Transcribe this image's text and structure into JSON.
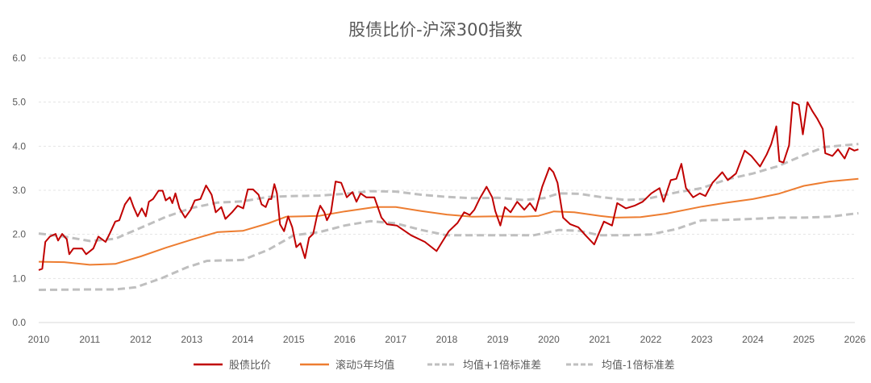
{
  "chart_data": {
    "type": "line",
    "title": "股债比价-沪深300指数",
    "xlabel": "",
    "ylabel": "",
    "xlim": [
      2010,
      2026
    ],
    "ylim": [
      0,
      6
    ],
    "x_ticks": [
      "2010",
      "2011",
      "2012",
      "2013",
      "2014",
      "2015",
      "2016",
      "2017",
      "2018",
      "2019",
      "2020",
      "2021",
      "2022",
      "2023",
      "2024",
      "2025",
      "2026"
    ],
    "y_ticks": [
      "0.0",
      "1.0",
      "2.0",
      "3.0",
      "4.0",
      "5.0",
      "6.0"
    ],
    "grid": "horizontal dashed",
    "legend_position": "bottom",
    "series": [
      {
        "name": "股债比价",
        "color": "#C00000",
        "style": "solid",
        "x": [
          2010.0,
          2010.07,
          2010.13,
          2010.22,
          2010.33,
          2010.38,
          2010.46,
          2010.55,
          2010.6,
          2010.68,
          2010.85,
          2010.93,
          2011.07,
          2011.17,
          2011.31,
          2011.39,
          2011.5,
          2011.58,
          2011.69,
          2011.79,
          2011.86,
          2011.94,
          2012.02,
          2012.1,
          2012.16,
          2012.24,
          2012.35,
          2012.43,
          2012.49,
          2012.57,
          2012.62,
          2012.68,
          2012.76,
          2012.87,
          2012.98,
          2013.06,
          2013.17,
          2013.28,
          2013.39,
          2013.47,
          2013.58,
          2013.66,
          2013.79,
          2013.9,
          2014.01,
          2014.1,
          2014.2,
          2014.31,
          2014.37,
          2014.45,
          2014.51,
          2014.56,
          2014.62,
          2014.67,
          2014.73,
          2014.81,
          2014.89,
          2014.97,
          2015.05,
          2015.13,
          2015.22,
          2015.3,
          2015.38,
          2015.46,
          2015.52,
          2015.6,
          2015.65,
          2015.73,
          2015.82,
          2015.93,
          2016.04,
          2016.15,
          2016.23,
          2016.31,
          2016.42,
          2016.58,
          2016.72,
          2016.83,
          2017.02,
          2017.3,
          2017.57,
          2017.8,
          2017.91,
          2018.04,
          2018.21,
          2018.34,
          2018.45,
          2018.54,
          2018.64,
          2018.78,
          2018.89,
          2018.95,
          2019.05,
          2019.14,
          2019.25,
          2019.38,
          2019.52,
          2019.63,
          2019.74,
          2019.87,
          2020.01,
          2020.09,
          2020.17,
          2020.28,
          2020.42,
          2020.58,
          2020.72,
          2020.89,
          2021.08,
          2021.24,
          2021.34,
          2021.51,
          2021.68,
          2021.84,
          2022.01,
          2022.17,
          2022.25,
          2022.39,
          2022.5,
          2022.6,
          2022.69,
          2022.83,
          2022.96,
          2023.07,
          2023.21,
          2023.4,
          2023.51,
          2023.67,
          2023.84,
          2023.97,
          2024.14,
          2024.27,
          2024.36,
          2024.46,
          2024.52,
          2024.6,
          2024.71,
          2024.78,
          2024.9,
          2024.98,
          2025.07,
          2025.17,
          2025.26,
          2025.37,
          2025.42,
          2025.56,
          2025.67,
          2025.8,
          2025.89,
          2025.99,
          2026.07
        ],
        "y": [
          1.19,
          1.22,
          1.83,
          1.95,
          2.01,
          1.86,
          2.01,
          1.89,
          1.55,
          1.68,
          1.68,
          1.55,
          1.68,
          1.95,
          1.83,
          2.01,
          2.29,
          2.32,
          2.68,
          2.84,
          2.62,
          2.41,
          2.59,
          2.41,
          2.74,
          2.8,
          2.99,
          2.99,
          2.77,
          2.84,
          2.71,
          2.93,
          2.59,
          2.38,
          2.56,
          2.77,
          2.8,
          3.11,
          2.9,
          2.5,
          2.62,
          2.35,
          2.5,
          2.65,
          2.59,
          3.02,
          3.02,
          2.9,
          2.68,
          2.62,
          2.8,
          2.8,
          3.14,
          2.93,
          2.23,
          2.07,
          2.41,
          2.16,
          1.71,
          1.8,
          1.46,
          1.92,
          2.01,
          2.44,
          2.65,
          2.5,
          2.32,
          2.5,
          3.2,
          3.17,
          2.84,
          2.96,
          2.74,
          2.93,
          2.84,
          2.84,
          2.38,
          2.23,
          2.2,
          1.98,
          1.83,
          1.62,
          1.83,
          2.07,
          2.26,
          2.5,
          2.44,
          2.56,
          2.8,
          3.08,
          2.84,
          2.53,
          2.2,
          2.62,
          2.5,
          2.74,
          2.56,
          2.71,
          2.53,
          3.08,
          3.51,
          3.41,
          3.17,
          2.38,
          2.23,
          2.16,
          1.98,
          1.77,
          2.29,
          2.2,
          2.71,
          2.59,
          2.65,
          2.74,
          2.93,
          3.05,
          2.74,
          3.23,
          3.26,
          3.6,
          3.05,
          2.84,
          2.93,
          2.87,
          3.17,
          3.41,
          3.23,
          3.38,
          3.9,
          3.78,
          3.54,
          3.81,
          4.05,
          4.45,
          3.66,
          3.63,
          4.02,
          5.0,
          4.94,
          4.27,
          5.0,
          4.79,
          4.63,
          4.39,
          3.84,
          3.78,
          3.93,
          3.72,
          3.96,
          3.9,
          3.93
        ]
      },
      {
        "name": "滚动5年均值",
        "color": "#ED7D31",
        "style": "solid",
        "x": [
          2010,
          2010.5,
          2011,
          2011.5,
          2012,
          2012.5,
          2013,
          2013.5,
          2014,
          2014.5,
          2014.85,
          2015.5,
          2016,
          2016.6,
          2017,
          2017.5,
          2018,
          2018.5,
          2019,
          2019.5,
          2019.8,
          2020.1,
          2020.5,
          2021,
          2021.3,
          2021.8,
          2022.3,
          2023,
          2023.5,
          2024,
          2024.5,
          2025,
          2025.5,
          2026.07
        ],
        "y": [
          1.38,
          1.37,
          1.31,
          1.33,
          1.5,
          1.7,
          1.88,
          2.05,
          2.08,
          2.25,
          2.4,
          2.42,
          2.52,
          2.62,
          2.62,
          2.53,
          2.45,
          2.4,
          2.41,
          2.4,
          2.42,
          2.52,
          2.5,
          2.42,
          2.38,
          2.39,
          2.47,
          2.63,
          2.72,
          2.8,
          2.92,
          3.1,
          3.2,
          3.26
        ]
      },
      {
        "name": "均值+1倍标准差",
        "color": "#BFBFBF",
        "style": "dashed",
        "x": [
          2010,
          2010.5,
          2011,
          2011.5,
          2012,
          2012.5,
          2013,
          2013.5,
          2014,
          2014.5,
          2015,
          2015.5,
          2016,
          2016.5,
          2017,
          2017.5,
          2018,
          2018.5,
          2019,
          2019.5,
          2019.9,
          2020.2,
          2020.6,
          2021,
          2021.5,
          2021.9,
          2022.5,
          2023,
          2023.5,
          2024,
          2024.5,
          2025,
          2025.4,
          2026.07
        ],
        "y": [
          2.02,
          1.95,
          1.85,
          1.9,
          2.15,
          2.4,
          2.6,
          2.72,
          2.75,
          2.85,
          2.87,
          2.88,
          2.92,
          2.98,
          2.97,
          2.9,
          2.85,
          2.82,
          2.83,
          2.78,
          2.82,
          2.93,
          2.92,
          2.85,
          2.78,
          2.8,
          2.95,
          3.05,
          3.25,
          3.38,
          3.55,
          3.8,
          3.98,
          4.05
        ]
      },
      {
        "name": "均值-1倍标准差",
        "color": "#BFBFBF",
        "style": "dashed",
        "x": [
          2010,
          2011,
          2011.5,
          2011.9,
          2012.4,
          2012.9,
          2013.3,
          2014,
          2014.5,
          2015,
          2015.5,
          2016,
          2016.5,
          2017,
          2017.5,
          2018,
          2018.5,
          2019,
          2019.7,
          2020.2,
          2020.6,
          2021,
          2021.5,
          2022,
          2022.5,
          2023,
          2023.5,
          2024,
          2024.5,
          2025,
          2025.5,
          2026.07
        ],
        "y": [
          0.74,
          0.75,
          0.75,
          0.8,
          1.0,
          1.25,
          1.4,
          1.42,
          1.65,
          1.98,
          2.05,
          2.2,
          2.3,
          2.25,
          2.1,
          1.98,
          1.98,
          1.98,
          1.98,
          2.1,
          2.08,
          1.98,
          1.98,
          2.0,
          2.12,
          2.32,
          2.33,
          2.35,
          2.38,
          2.38,
          2.4,
          2.48
        ]
      }
    ]
  }
}
